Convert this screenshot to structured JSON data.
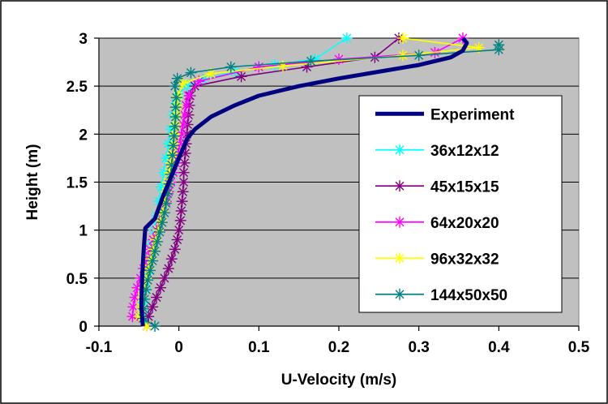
{
  "chart_data": {
    "type": "line",
    "title": "",
    "xlabel": "U-Velocity (m/s)",
    "ylabel": "Height (m)",
    "xlim": [
      -0.1,
      0.5
    ],
    "ylim": [
      0,
      3
    ],
    "xticks": [
      -0.1,
      0,
      0.1,
      0.2,
      0.3,
      0.4,
      0.5
    ],
    "yticks": [
      0,
      0.5,
      1,
      1.5,
      2,
      2.5,
      3
    ],
    "xtick_labels": [
      "-0.1",
      "0",
      "0.1",
      "0.2",
      "0.3",
      "0.4",
      "0.5"
    ],
    "ytick_labels": [
      "0",
      "0.5",
      "1",
      "1.5",
      "2",
      "2.5",
      "3"
    ],
    "grid": "horizontal",
    "plot_background": "#c0c0c0",
    "legend_position": "right",
    "series": [
      {
        "name": "Experiment",
        "color": "#000080",
        "marker": "none",
        "points": [
          [
            -0.045,
            0.0
          ],
          [
            -0.047,
            0.2
          ],
          [
            -0.046,
            0.5
          ],
          [
            -0.044,
            0.8
          ],
          [
            -0.042,
            1.02
          ],
          [
            -0.03,
            1.12
          ],
          [
            -0.02,
            1.35
          ],
          [
            -0.01,
            1.55
          ],
          [
            0.0,
            1.75
          ],
          [
            0.01,
            1.95
          ],
          [
            0.02,
            2.05
          ],
          [
            0.04,
            2.18
          ],
          [
            0.07,
            2.3
          ],
          [
            0.1,
            2.4
          ],
          [
            0.15,
            2.5
          ],
          [
            0.2,
            2.58
          ],
          [
            0.25,
            2.65
          ],
          [
            0.3,
            2.72
          ],
          [
            0.34,
            2.8
          ],
          [
            0.355,
            2.87
          ],
          [
            0.36,
            2.95
          ],
          [
            0.355,
            3.0
          ]
        ]
      },
      {
        "name": "36x12x12",
        "color": "#00ffff",
        "marker": "star",
        "points": [
          [
            -0.04,
            0.0
          ],
          [
            -0.045,
            0.1
          ],
          [
            -0.044,
            0.25
          ],
          [
            -0.042,
            0.4
          ],
          [
            -0.04,
            0.55
          ],
          [
            -0.037,
            0.7
          ],
          [
            -0.034,
            0.85
          ],
          [
            -0.031,
            1.0
          ],
          [
            -0.028,
            1.15
          ],
          [
            -0.025,
            1.3
          ],
          [
            -0.022,
            1.45
          ],
          [
            -0.019,
            1.6
          ],
          [
            -0.016,
            1.75
          ],
          [
            -0.013,
            1.9
          ],
          [
            -0.01,
            2.05
          ],
          [
            -0.007,
            2.2
          ],
          [
            -0.004,
            2.32
          ],
          [
            0.0,
            2.42
          ],
          [
            0.01,
            2.5
          ],
          [
            0.03,
            2.57
          ],
          [
            0.07,
            2.65
          ],
          [
            0.12,
            2.72
          ],
          [
            0.17,
            2.78
          ],
          [
            0.21,
            3.0
          ]
        ]
      },
      {
        "name": "45x15x15",
        "color": "#800080",
        "marker": "star",
        "points": [
          [
            -0.04,
            0.0
          ],
          [
            -0.038,
            0.1
          ],
          [
            -0.033,
            0.2
          ],
          [
            -0.028,
            0.3
          ],
          [
            -0.023,
            0.4
          ],
          [
            -0.018,
            0.5
          ],
          [
            -0.013,
            0.6
          ],
          [
            -0.009,
            0.7
          ],
          [
            -0.005,
            0.8
          ],
          [
            -0.002,
            0.9
          ],
          [
            0.0,
            1.0
          ],
          [
            0.002,
            1.1
          ],
          [
            0.003,
            1.2
          ],
          [
            0.004,
            1.3
          ],
          [
            0.005,
            1.4
          ],
          [
            0.006,
            1.5
          ],
          [
            0.006,
            1.6
          ],
          [
            0.007,
            1.7
          ],
          [
            0.008,
            1.8
          ],
          [
            0.009,
            1.9
          ],
          [
            0.01,
            2.0
          ],
          [
            0.011,
            2.1
          ],
          [
            0.012,
            2.2
          ],
          [
            0.013,
            2.3
          ],
          [
            0.014,
            2.4
          ],
          [
            0.02,
            2.5
          ],
          [
            0.078,
            2.6
          ],
          [
            0.16,
            2.7
          ],
          [
            0.245,
            2.8
          ],
          [
            0.275,
            3.0
          ]
        ]
      },
      {
        "name": "64x20x20",
        "color": "#ff00ff",
        "marker": "star",
        "points": [
          [
            -0.04,
            0.0
          ],
          [
            -0.058,
            0.1
          ],
          [
            -0.057,
            0.2
          ],
          [
            -0.055,
            0.3
          ],
          [
            -0.052,
            0.4
          ],
          [
            -0.048,
            0.5
          ],
          [
            -0.044,
            0.6
          ],
          [
            -0.04,
            0.7
          ],
          [
            -0.036,
            0.8
          ],
          [
            -0.032,
            0.9
          ],
          [
            -0.028,
            1.0
          ],
          [
            -0.024,
            1.1
          ],
          [
            -0.02,
            1.2
          ],
          [
            -0.016,
            1.3
          ],
          [
            -0.013,
            1.4
          ],
          [
            -0.01,
            1.5
          ],
          [
            -0.007,
            1.6
          ],
          [
            -0.004,
            1.7
          ],
          [
            -0.001,
            1.8
          ],
          [
            0.001,
            1.9
          ],
          [
            0.003,
            2.0
          ],
          [
            0.005,
            2.1
          ],
          [
            0.007,
            2.2
          ],
          [
            0.009,
            2.3
          ],
          [
            0.012,
            2.4
          ],
          [
            0.025,
            2.55
          ],
          [
            0.1,
            2.7
          ],
          [
            0.2,
            2.78
          ],
          [
            0.32,
            2.85
          ],
          [
            0.355,
            3.0
          ]
        ]
      },
      {
        "name": "96x32x32",
        "color": "#ffff00",
        "marker": "star",
        "points": [
          [
            -0.04,
            0.0
          ],
          [
            -0.05,
            0.1
          ],
          [
            -0.048,
            0.2
          ],
          [
            -0.046,
            0.3
          ],
          [
            -0.044,
            0.4
          ],
          [
            -0.041,
            0.5
          ],
          [
            -0.038,
            0.6
          ],
          [
            -0.035,
            0.7
          ],
          [
            -0.032,
            0.8
          ],
          [
            -0.029,
            0.9
          ],
          [
            -0.026,
            1.0
          ],
          [
            -0.023,
            1.1
          ],
          [
            -0.02,
            1.2
          ],
          [
            -0.018,
            1.3
          ],
          [
            -0.016,
            1.4
          ],
          [
            -0.014,
            1.5
          ],
          [
            -0.012,
            1.6
          ],
          [
            -0.01,
            1.7
          ],
          [
            -0.008,
            1.8
          ],
          [
            -0.006,
            1.9
          ],
          [
            -0.005,
            2.0
          ],
          [
            -0.004,
            2.1
          ],
          [
            -0.003,
            2.2
          ],
          [
            -0.002,
            2.3
          ],
          [
            -0.001,
            2.4
          ],
          [
            0.005,
            2.53
          ],
          [
            0.04,
            2.63
          ],
          [
            0.13,
            2.71
          ],
          [
            0.28,
            2.82
          ],
          [
            0.375,
            2.9
          ],
          [
            0.28,
            3.0
          ]
        ]
      },
      {
        "name": "144x50x50",
        "color": "#008080",
        "marker": "star",
        "points": [
          [
            -0.03,
            0.0
          ],
          [
            -0.045,
            0.08
          ],
          [
            -0.044,
            0.18
          ],
          [
            -0.043,
            0.28
          ],
          [
            -0.041,
            0.38
          ],
          [
            -0.039,
            0.48
          ],
          [
            -0.036,
            0.58
          ],
          [
            -0.033,
            0.68
          ],
          [
            -0.03,
            0.78
          ],
          [
            -0.027,
            0.88
          ],
          [
            -0.024,
            0.98
          ],
          [
            -0.021,
            1.08
          ],
          [
            -0.018,
            1.18
          ],
          [
            -0.016,
            1.28
          ],
          [
            -0.014,
            1.38
          ],
          [
            -0.012,
            1.48
          ],
          [
            -0.01,
            1.58
          ],
          [
            -0.009,
            1.68
          ],
          [
            -0.008,
            1.78
          ],
          [
            -0.007,
            1.88
          ],
          [
            -0.006,
            1.98
          ],
          [
            -0.005,
            2.08
          ],
          [
            -0.004,
            2.18
          ],
          [
            -0.004,
            2.28
          ],
          [
            -0.003,
            2.38
          ],
          [
            -0.005,
            2.5
          ],
          [
            -0.002,
            2.58
          ],
          [
            0.015,
            2.64
          ],
          [
            0.065,
            2.7
          ],
          [
            0.165,
            2.76
          ],
          [
            0.3,
            2.82
          ],
          [
            0.4,
            2.88
          ],
          [
            0.4,
            2.93
          ]
        ]
      }
    ]
  }
}
